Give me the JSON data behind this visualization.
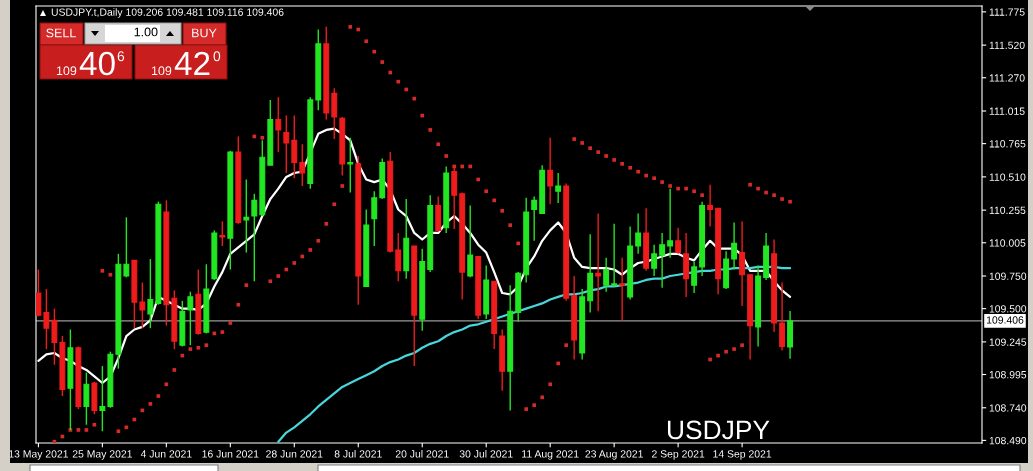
{
  "chart_data": {
    "type": "candlestick",
    "title": "USDJPY.t,Daily 109.206 109.481 109.116 109.406",
    "categories": [
      "13 May 2021",
      null,
      null,
      null,
      null,
      null,
      null,
      null,
      "25 May 2021",
      null,
      null,
      null,
      null,
      null,
      null,
      null,
      "4 Jun 2021",
      null,
      null,
      null,
      null,
      null,
      null,
      null,
      "16 Jun 2021",
      null,
      null,
      null,
      null,
      null,
      null,
      null,
      "28 Jun 2021",
      null,
      null,
      null,
      null,
      null,
      null,
      null,
      "8 Jul 2021",
      null,
      null,
      null,
      null,
      null,
      null,
      null,
      "20 Jul 2021",
      null,
      null,
      null,
      null,
      null,
      null,
      null,
      "30 Jul 2021",
      null,
      null,
      null,
      null,
      null,
      null,
      null,
      "11 Aug 2021",
      null,
      null,
      null,
      null,
      null,
      null,
      null,
      "23 Aug 2021",
      null,
      null,
      null,
      null,
      null,
      null,
      null,
      "2 Sep 2021",
      null,
      null,
      null,
      null,
      null,
      null,
      null,
      "14 Sep 2021",
      null,
      null,
      null,
      null,
      null,
      null
    ],
    "ohlc": [
      [
        109.62,
        109.8,
        109.44,
        109.45
      ],
      [
        109.47,
        109.65,
        109.19,
        109.35
      ],
      [
        109.41,
        109.5,
        109.07,
        109.24
      ],
      [
        109.24,
        109.29,
        108.83,
        108.88
      ],
      [
        108.89,
        109.34,
        108.57,
        109.2
      ],
      [
        109.2,
        109.21,
        108.73,
        108.75
      ],
      [
        108.75,
        109.01,
        108.61,
        108.92
      ],
      [
        108.93,
        108.94,
        108.69,
        108.72
      ],
      [
        108.72,
        109.06,
        108.56,
        108.75
      ],
      [
        108.75,
        109.17,
        108.74,
        109.15
      ],
      [
        109.15,
        109.92,
        109.04,
        109.84
      ],
      [
        109.75,
        110.2,
        109.74,
        109.84
      ],
      [
        109.87,
        109.87,
        109.35,
        109.55
      ],
      [
        109.55,
        109.7,
        109.35,
        109.49
      ],
      [
        109.46,
        109.88,
        109.35,
        109.57
      ],
      [
        109.54,
        110.32,
        109.53,
        110.3
      ],
      [
        110.24,
        110.33,
        109.37,
        109.53
      ],
      [
        109.58,
        109.64,
        109.19,
        109.25
      ],
      [
        109.22,
        109.56,
        109.21,
        109.48
      ],
      [
        109.49,
        109.63,
        109.22,
        109.59
      ],
      [
        109.61,
        109.8,
        109.3,
        109.31
      ],
      [
        109.32,
        109.84,
        109.31,
        109.65
      ],
      [
        109.73,
        110.1,
        109.72,
        110.08
      ],
      [
        110.06,
        110.17,
        109.98,
        110.05
      ],
      [
        110.04,
        110.71,
        109.8,
        110.7
      ],
      [
        110.7,
        110.82,
        110.15,
        110.16
      ],
      [
        110.18,
        110.49,
        109.93,
        110.2
      ],
      [
        110.21,
        110.38,
        109.71,
        110.33
      ],
      [
        110.22,
        110.79,
        110.21,
        110.66
      ],
      [
        110.6,
        111.1,
        110.6,
        110.95
      ],
      [
        110.95,
        111.12,
        110.7,
        110.87
      ],
      [
        110.85,
        110.98,
        110.54,
        110.77
      ],
      [
        110.79,
        110.98,
        110.5,
        110.62
      ],
      [
        110.62,
        110.76,
        110.44,
        110.54
      ],
      [
        110.46,
        111.12,
        110.42,
        111.1
      ],
      [
        111.1,
        111.64,
        111.02,
        111.53
      ],
      [
        111.53,
        111.66,
        110.95,
        111.0
      ],
      [
        111.15,
        111.19,
        110.8,
        110.97
      ],
      [
        110.96,
        110.97,
        110.52,
        110.61
      ],
      [
        110.61,
        110.81,
        110.39,
        110.62
      ],
      [
        110.61,
        110.67,
        109.53,
        109.75
      ],
      [
        109.67,
        110.26,
        109.67,
        110.14
      ],
      [
        110.19,
        110.4,
        109.98,
        110.35
      ],
      [
        110.35,
        110.65,
        110.34,
        110.62
      ],
      [
        110.63,
        110.7,
        109.93,
        109.94
      ],
      [
        109.95,
        110.08,
        109.71,
        109.79
      ],
      [
        109.79,
        110.34,
        109.73,
        110.04
      ],
      [
        109.98,
        109.98,
        109.06,
        109.45
      ],
      [
        109.42,
        109.96,
        109.33,
        109.86
      ],
      [
        109.8,
        110.37,
        109.78,
        110.29
      ],
      [
        110.29,
        110.36,
        110.09,
        110.1
      ],
      [
        110.12,
        110.59,
        110.08,
        110.54
      ],
      [
        110.55,
        110.6,
        110.11,
        110.37
      ],
      [
        110.38,
        110.39,
        109.57,
        109.78
      ],
      [
        109.75,
        110.29,
        109.74,
        109.91
      ],
      [
        109.9,
        109.9,
        109.42,
        109.45
      ],
      [
        109.46,
        109.83,
        109.42,
        109.72
      ],
      [
        109.71,
        109.71,
        109.19,
        109.31
      ],
      [
        109.29,
        109.34,
        108.87,
        109.02
      ],
      [
        109.02,
        109.68,
        108.72,
        109.48
      ],
      [
        109.47,
        109.78,
        109.4,
        109.77
      ],
      [
        109.76,
        110.35,
        109.7,
        110.24
      ],
      [
        110.26,
        110.36,
        110.02,
        110.33
      ],
      [
        110.23,
        110.6,
        110.23,
        110.56
      ],
      [
        110.56,
        110.81,
        110.3,
        110.44
      ],
      [
        110.4,
        110.54,
        110.31,
        110.44
      ],
      [
        110.44,
        110.46,
        109.56,
        109.58
      ],
      [
        109.6,
        109.75,
        109.11,
        109.26
      ],
      [
        109.16,
        109.65,
        109.11,
        109.59
      ],
      [
        109.56,
        110.07,
        109.47,
        109.77
      ],
      [
        109.77,
        110.23,
        109.48,
        109.75
      ],
      [
        109.68,
        109.89,
        109.63,
        109.8
      ],
      [
        109.68,
        110.15,
        109.67,
        109.69
      ],
      [
        109.69,
        109.89,
        109.41,
        109.68
      ],
      [
        109.59,
        110.13,
        109.57,
        109.98
      ],
      [
        109.98,
        110.23,
        109.92,
        110.08
      ],
      [
        110.08,
        110.27,
        109.79,
        109.81
      ],
      [
        109.81,
        109.99,
        109.75,
        109.92
      ],
      [
        109.91,
        110.08,
        109.66,
        109.99
      ],
      [
        109.98,
        110.42,
        109.89,
        110.02
      ],
      [
        110.02,
        110.12,
        109.92,
        109.93
      ],
      [
        109.92,
        110.08,
        109.59,
        109.73
      ],
      [
        109.68,
        109.86,
        109.62,
        109.82
      ],
      [
        109.82,
        110.32,
        109.75,
        110.29
      ],
      [
        110.29,
        110.45,
        110.13,
        110.26
      ],
      [
        110.27,
        110.27,
        109.61,
        109.73
      ],
      [
        109.66,
        109.94,
        109.65,
        109.88
      ],
      [
        109.88,
        110.16,
        109.8,
        110.0
      ],
      [
        109.93,
        110.17,
        109.52,
        109.76
      ],
      [
        109.76,
        109.76,
        109.11,
        109.37
      ],
      [
        109.36,
        109.83,
        109.21,
        109.75
      ],
      [
        109.74,
        110.08,
        109.72,
        109.98
      ],
      [
        109.92,
        110.03,
        109.32,
        109.39
      ],
      [
        109.39,
        109.7,
        109.18,
        109.21
      ],
      [
        109.206,
        109.481,
        109.116,
        109.406
      ]
    ],
    "colors": [
      "#ee1c1c",
      "#ee1c1c",
      "#ee1c1c",
      "#ee1c1c",
      "#22e622",
      "#ee1c1c",
      "#22e622",
      "#ee1c1c",
      "#22e622",
      "#22e622",
      "#22e622",
      "#22e622",
      "#ee1c1c",
      "#ee1c1c",
      "#22e622",
      "#22e622",
      "#ee1c1c",
      "#ee1c1c",
      "#22e622",
      "#22e622",
      "#ee1c1c",
      "#22e622",
      "#22e622",
      "#ee1c1c",
      "#22e622",
      "#ee1c1c",
      "#22e622",
      "#22e622",
      "#22e622",
      "#22e622",
      "#ee1c1c",
      "#ee1c1c",
      "#ee1c1c",
      "#ee1c1c",
      "#22e622",
      "#22e622",
      "#ee1c1c",
      "#ee1c1c",
      "#ee1c1c",
      "#22e622",
      "#ee1c1c",
      "#22e622",
      "#22e622",
      "#22e622",
      "#ee1c1c",
      "#ee1c1c",
      "#22e622",
      "#ee1c1c",
      "#22e622",
      "#22e622",
      "#ee1c1c",
      "#22e622",
      "#ee1c1c",
      "#ee1c1c",
      "#22e622",
      "#ee1c1c",
      "#22e622",
      "#ee1c1c",
      "#ee1c1c",
      "#22e622",
      "#22e622",
      "#22e622",
      "#22e622",
      "#22e622",
      "#ee1c1c",
      "#22e622",
      "#ee1c1c",
      "#ee1c1c",
      "#22e622",
      "#22e622",
      "#ee1c1c",
      "#22e622",
      "#22e622",
      "#ee1c1c",
      "#22e622",
      "#22e622",
      "#ee1c1c",
      "#22e622",
      "#22e622",
      "#22e622",
      "#ee1c1c",
      "#ee1c1c",
      "#22e622",
      "#22e622",
      "#ee1c1c",
      "#ee1c1c",
      "#22e622",
      "#22e622",
      "#ee1c1c",
      "#ee1c1c",
      "#22e622",
      "#22e622",
      "#ee1c1c",
      "#ee1c1c",
      "#22e622"
    ],
    "series": [
      {
        "type": "line",
        "color": "#ffffff",
        "values": [
          109.1,
          109.15,
          109.16,
          109.12,
          109.1,
          109.06,
          109.03,
          108.98,
          108.93,
          108.98,
          109.12,
          109.29,
          109.34,
          109.36,
          109.41,
          109.59,
          109.56,
          109.53,
          109.5,
          109.5,
          109.49,
          109.54,
          109.67,
          109.78,
          109.92,
          109.97,
          110.02,
          110.07,
          110.21,
          110.34,
          110.42,
          110.51,
          110.54,
          110.55,
          null,
          110.84,
          110.87,
          110.88,
          110.84,
          110.79,
          110.61,
          110.49,
          110.47,
          110.49,
          110.41,
          110.26,
          110.21,
          110.08,
          110.03,
          110.08,
          110.08,
          110.16,
          110.21,
          110.15,
          110.08,
          109.99,
          109.93,
          109.78,
          109.62,
          109.61,
          109.67,
          109.81,
          109.9,
          110.02,
          110.1,
          110.16,
          110.08,
          109.89,
          109.82,
          109.81,
          109.81,
          109.81,
          109.8,
          109.76,
          109.81,
          109.85,
          109.86,
          109.88,
          109.9,
          109.92,
          109.92,
          109.89,
          109.87,
          109.95,
          110.02,
          109.96,
          109.96,
          109.96,
          109.91,
          109.79,
          109.79,
          109.79,
          109.71,
          109.64,
          109.59
        ]
      },
      {
        "type": "line",
        "color": "#48d6dc",
        "values": [
          null,
          null,
          null,
          null,
          null,
          null,
          null,
          null,
          null,
          null,
          null,
          null,
          null,
          null,
          null,
          null,
          null,
          null,
          null,
          null,
          null,
          null,
          null,
          null,
          null,
          null,
          null,
          null,
          null,
          null,
          108.48,
          108.55,
          108.59,
          108.64,
          108.69,
          108.75,
          108.8,
          108.85,
          108.9,
          108.93,
          108.96,
          108.99,
          109.02,
          109.06,
          109.09,
          109.11,
          109.14,
          109.16,
          109.2,
          109.23,
          109.25,
          109.29,
          109.32,
          109.34,
          109.37,
          109.38,
          109.4,
          109.42,
          109.44,
          109.46,
          109.48,
          109.5,
          109.52,
          109.54,
          109.57,
          109.59,
          109.61,
          109.61,
          109.62,
          109.64,
          109.65,
          109.67,
          109.67,
          109.68,
          109.69,
          109.7,
          109.72,
          109.73,
          109.73,
          109.75,
          109.76,
          109.77,
          109.78,
          109.79,
          109.79,
          109.8,
          109.8,
          109.81,
          109.81,
          109.81,
          109.82,
          109.82,
          109.82,
          109.81,
          109.81
        ]
      },
      {
        "type": "scatter",
        "color": "#d42a2a",
        "marker": "square",
        "values": [
          null,
          null,
          108.48,
          108.52,
          108.57,
          108.57,
          108.57,
          108.61,
          109.79,
          109.76,
          108.56,
          108.59,
          108.65,
          108.72,
          108.77,
          108.83,
          108.92,
          109.03,
          109.14,
          109.19,
          109.2,
          109.22,
          109.31,
          109.32,
          109.39,
          109.53,
          109.68,
          110.82,
          110.81,
          109.71,
          109.75,
          109.8,
          109.85,
          109.9,
          109.95,
          110.02,
          110.15,
          110.3,
          110.44,
          111.66,
          111.64,
          111.55,
          111.47,
          111.39,
          111.31,
          111.24,
          111.18,
          111.11,
          110.98,
          110.87,
          110.76,
          110.67,
          110.59,
          110.59,
          110.59,
          110.49,
          110.4,
          110.33,
          110.25,
          110.14,
          110.0,
          108.73,
          108.76,
          108.82,
          108.92,
          109.08,
          109.22,
          110.8,
          110.77,
          110.73,
          110.7,
          110.67,
          110.64,
          110.61,
          110.58,
          110.55,
          110.52,
          110.5,
          110.47,
          110.44,
          110.42,
          110.42,
          110.4,
          110.37,
          109.11,
          109.14,
          109.17,
          109.19,
          109.22,
          110.45,
          110.42,
          110.39,
          110.37,
          110.34,
          110.32
        ]
      }
    ],
    "ylim": [
      108.47,
      111.82
    ],
    "yticks": [
      111.775,
      {
        "value": 111.52,
        "label": "111.520"
      },
      {
        "value": 111.27,
        "label": "111.270"
      },
      111.015,
      110.765,
      {
        "value": 110.51,
        "label": "110.510"
      },
      110.255,
      110.005,
      {
        "value": 109.75,
        "label": "109.750"
      },
      {
        "value": 109.5,
        "label": "109.500"
      },
      109.245,
      108.995,
      {
        "value": 108.74,
        "label": "108.740"
      },
      {
        "value": 108.49,
        "label": "108.490"
      }
    ],
    "ref_lines": [
      {
        "axis": "y",
        "value": 109.406,
        "label": "109.406",
        "color": "#9a9a9a"
      }
    ],
    "annotations": [
      "SELL",
      "1.00",
      "BUY",
      "109",
      "40",
      "6",
      "109",
      "42",
      "0",
      "USDJPY"
    ]
  }
}
